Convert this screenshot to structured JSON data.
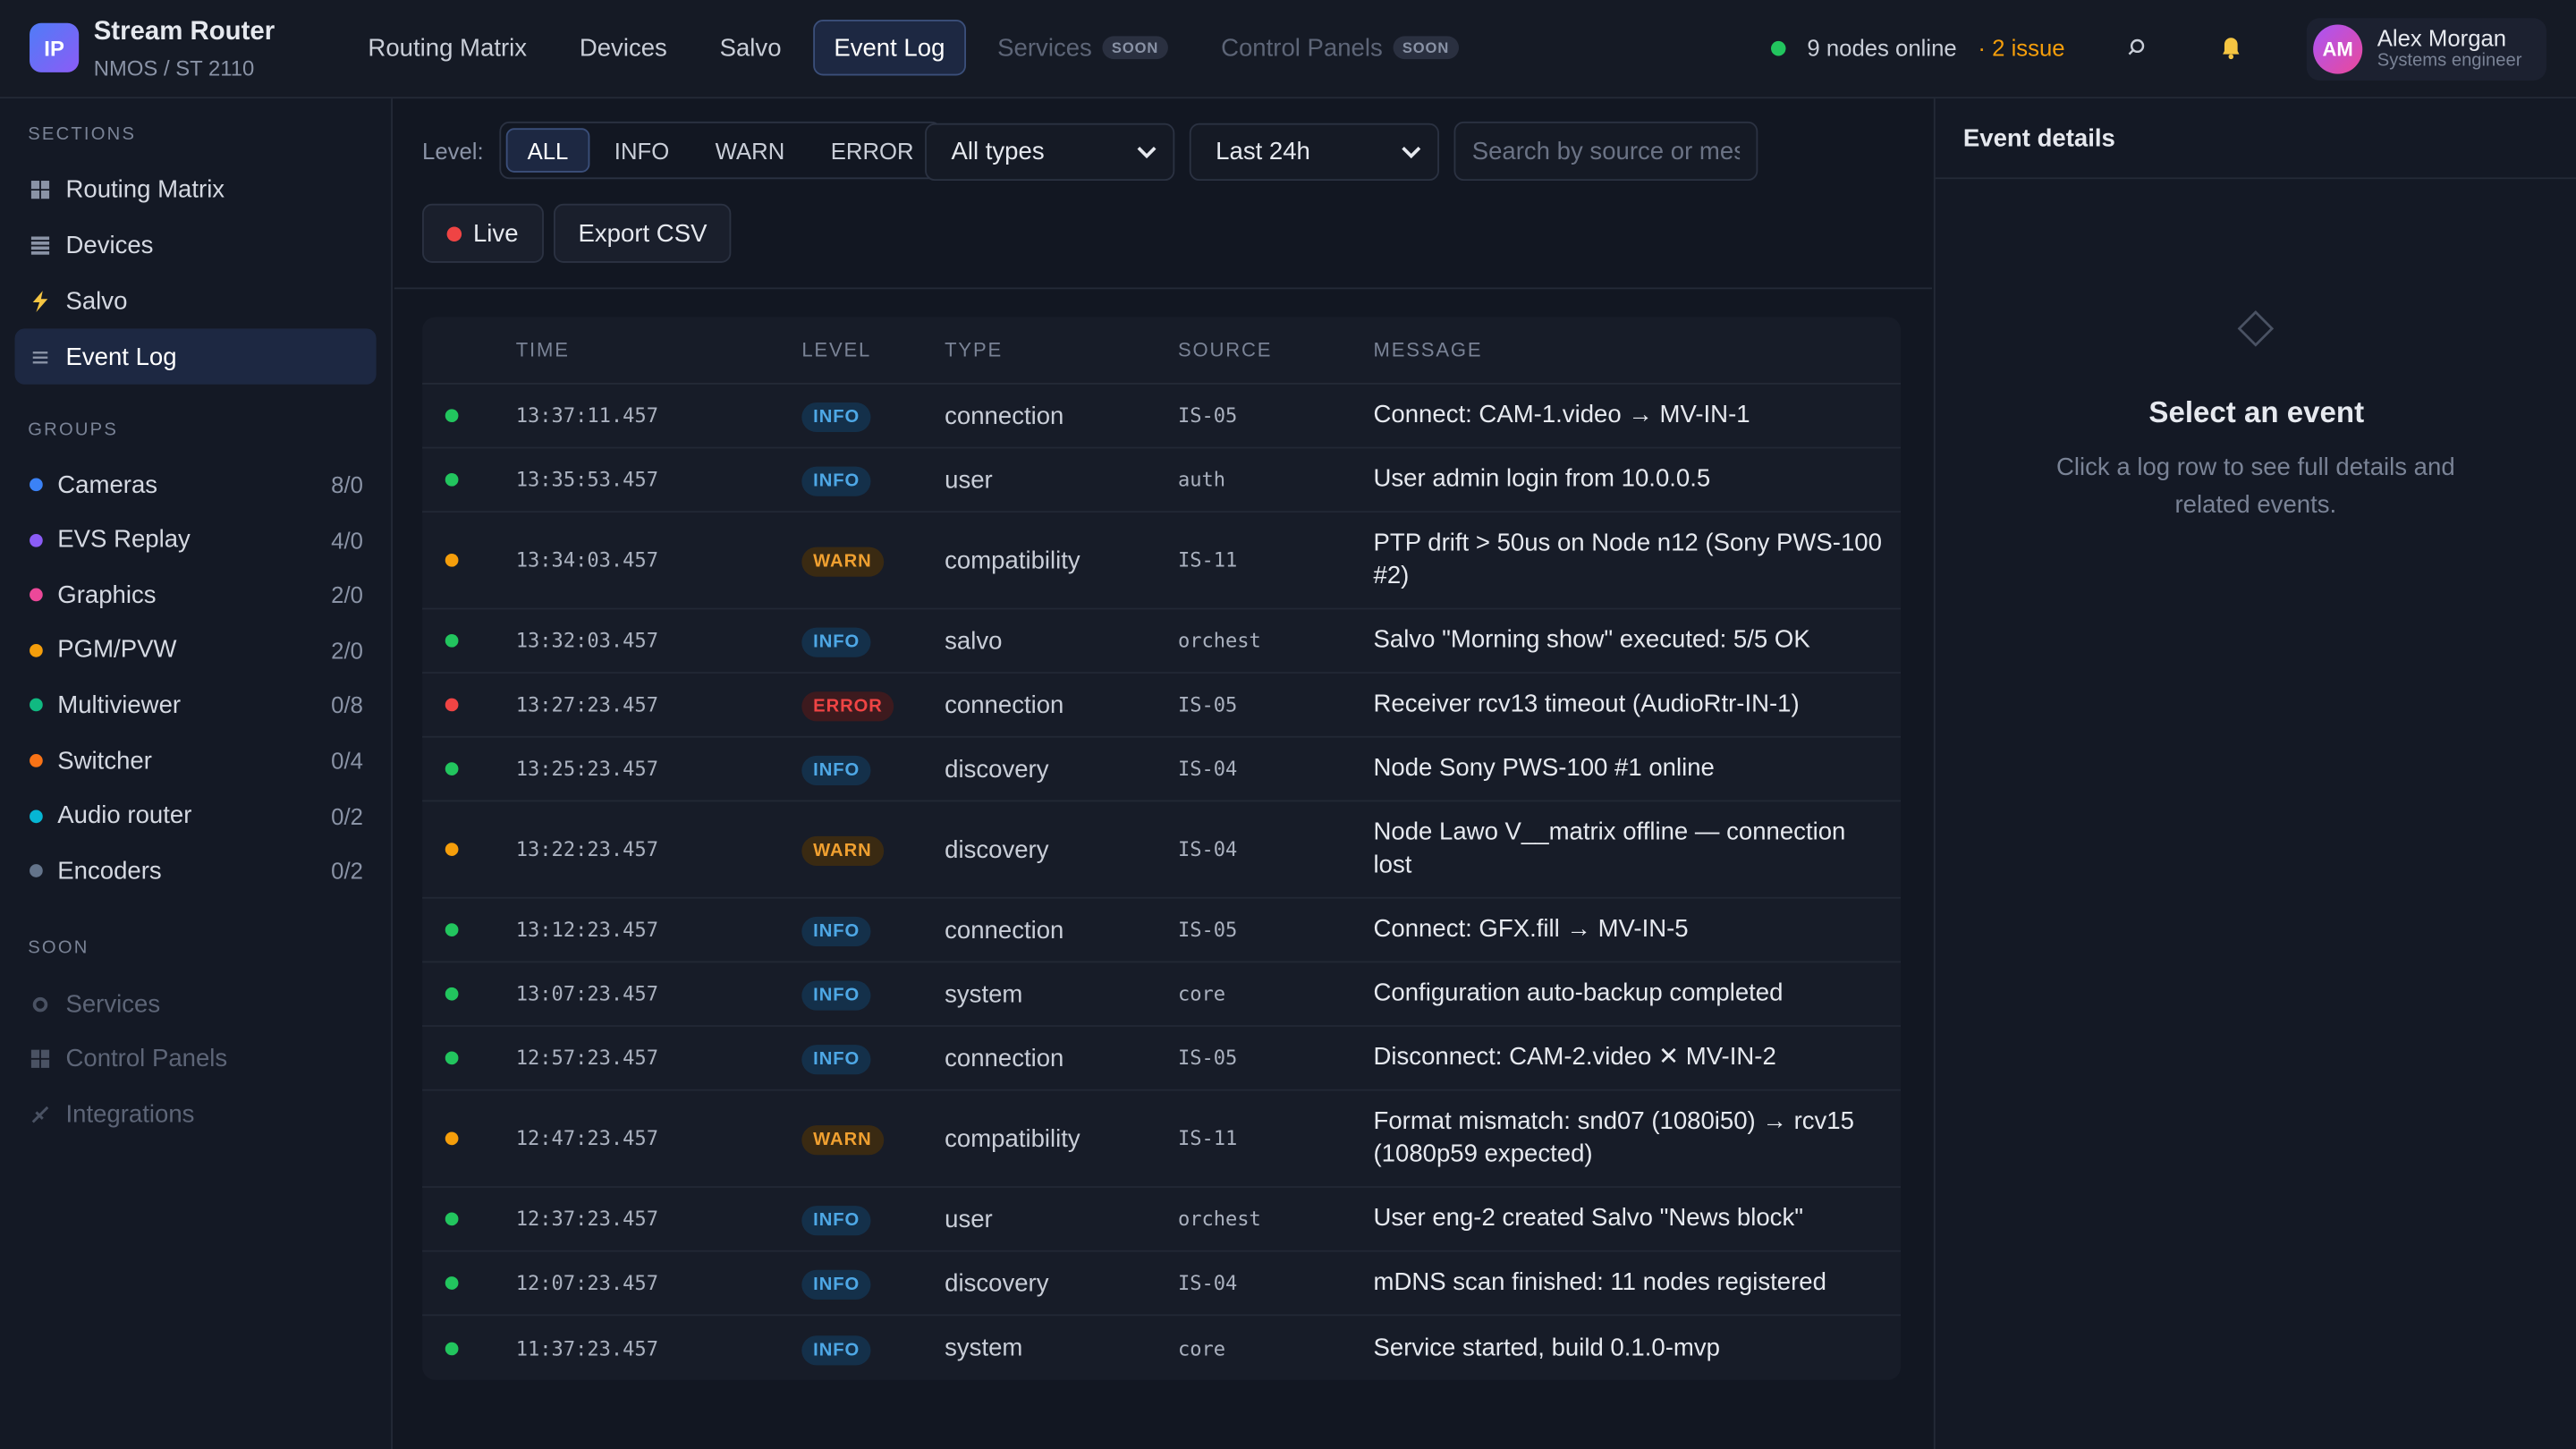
{
  "header": {
    "logo": "IP",
    "app_name": "Stream Router",
    "app_subtitle": "NMOS / ST 2110",
    "nav": [
      {
        "label": "Routing Matrix"
      },
      {
        "label": "Devices"
      },
      {
        "label": "Salvo"
      },
      {
        "label": "Event Log",
        "active": true
      },
      {
        "label": "Services",
        "badge": "SOON",
        "disabled": true
      },
      {
        "label": "Control Panels",
        "badge": "SOON",
        "disabled": true
      }
    ],
    "status": "9 nodes online",
    "issues": "· 2 issue",
    "user": {
      "initials": "AM",
      "name": "Alex Morgan",
      "role": "Systems engineer"
    }
  },
  "sidebar": {
    "sections_heading": "SECTIONS",
    "sections": [
      {
        "label": "Routing Matrix",
        "icon": "grid"
      },
      {
        "label": "Devices",
        "icon": "list"
      },
      {
        "label": "Salvo",
        "icon": "bolt"
      },
      {
        "label": "Event Log",
        "icon": "lines",
        "active": true
      }
    ],
    "groups_heading": "GROUPS",
    "groups": [
      {
        "name": "Cameras",
        "count": "8/0",
        "color": "#3b82f6"
      },
      {
        "name": "EVS Replay",
        "count": "4/0",
        "color": "#8b5cf6"
      },
      {
        "name": "Graphics",
        "count": "2/0",
        "color": "#ec4899"
      },
      {
        "name": "PGM/PVW",
        "count": "2/0",
        "color": "#f59e0b"
      },
      {
        "name": "Multiviewer",
        "count": "0/8",
        "color": "#10b981"
      },
      {
        "name": "Switcher",
        "count": "0/4",
        "color": "#f97316"
      },
      {
        "name": "Audio router",
        "count": "0/2",
        "color": "#06b6d4"
      },
      {
        "name": "Encoders",
        "count": "0/2",
        "color": "#64748b"
      }
    ],
    "soon_heading": "SOON",
    "soon": [
      {
        "label": "Services",
        "icon": "gear"
      },
      {
        "label": "Control Panels",
        "icon": "grid"
      },
      {
        "label": "Integrations",
        "icon": "plug"
      }
    ]
  },
  "filters": {
    "level_label": "Level:",
    "levels": [
      {
        "label": "ALL",
        "active": true
      },
      {
        "label": "INFO"
      },
      {
        "label": "WARN"
      },
      {
        "label": "ERROR"
      }
    ],
    "type_select": "All types",
    "time_select": "Last 24h",
    "search_placeholder": "Search by source or message",
    "live_button": "Live",
    "export_button": "Export CSV"
  },
  "table": {
    "columns": [
      "TIME",
      "LEVEL",
      "TYPE",
      "SOURCE",
      "MESSAGE"
    ],
    "rows": [
      {
        "time": "13:37:11.457",
        "level": "INFO",
        "type": "connection",
        "source": "IS-05",
        "message": "Connect: CAM-1.video → MV-IN-1"
      },
      {
        "time": "13:35:53.457",
        "level": "INFO",
        "type": "user",
        "source": "auth",
        "message": "User admin login from 10.0.0.5"
      },
      {
        "time": "13:34:03.457",
        "level": "WARN",
        "type": "compatibility",
        "source": "IS-11",
        "message": "PTP drift > 50us on Node n12 (Sony PWS-100 #2)"
      },
      {
        "time": "13:32:03.457",
        "level": "INFO",
        "type": "salvo",
        "source": "orchest",
        "message": "Salvo \"Morning show\" executed: 5/5 OK"
      },
      {
        "time": "13:27:23.457",
        "level": "ERROR",
        "type": "connection",
        "source": "IS-05",
        "message": "Receiver rcv13 timeout (AudioRtr-IN-1)"
      },
      {
        "time": "13:25:23.457",
        "level": "INFO",
        "type": "discovery",
        "source": "IS-04",
        "message": "Node Sony PWS-100 #1 online"
      },
      {
        "time": "13:22:23.457",
        "level": "WARN",
        "type": "discovery",
        "source": "IS-04",
        "message": "Node Lawo V__matrix offline — connection lost"
      },
      {
        "time": "13:12:23.457",
        "level": "INFO",
        "type": "connection",
        "source": "IS-05",
        "message": "Connect: GFX.fill → MV-IN-5"
      },
      {
        "time": "13:07:23.457",
        "level": "INFO",
        "type": "system",
        "source": "core",
        "message": "Configuration auto-backup completed"
      },
      {
        "time": "12:57:23.457",
        "level": "INFO",
        "type": "connection",
        "source": "IS-05",
        "message": "Disconnect: CAM-2.video ✕ MV-IN-2"
      },
      {
        "time": "12:47:23.457",
        "level": "WARN",
        "type": "compatibility",
        "source": "IS-11",
        "message": "Format mismatch: snd07 (1080i50) → rcv15 (1080p59 expected)"
      },
      {
        "time": "12:37:23.457",
        "level": "INFO",
        "type": "user",
        "source": "orchest",
        "message": "User eng-2 created Salvo \"News block\""
      },
      {
        "time": "12:07:23.457",
        "level": "INFO",
        "type": "discovery",
        "source": "IS-04",
        "message": "mDNS scan finished: 11 nodes registered"
      },
      {
        "time": "11:37:23.457",
        "level": "INFO",
        "type": "system",
        "source": "core",
        "message": "Service started, build 0.1.0-mvp"
      }
    ]
  },
  "details": {
    "title": "Event details",
    "empty_title": "Select an event",
    "empty_text": "Click a log row to see full details and related events."
  }
}
